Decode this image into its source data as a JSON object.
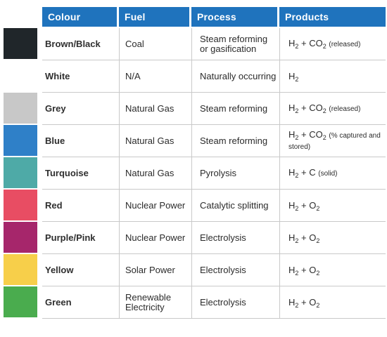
{
  "headers": {
    "colour": "Colour",
    "fuel": "Fuel",
    "process": "Process",
    "products": "Products"
  },
  "formula_parts": {
    "h": "H",
    "two": "2",
    "plus_co": " + CO",
    "plus_o": " + O",
    "plus_c": " + C "
  },
  "rows": [
    {
      "colour": "Brown/Black",
      "swatch": "#20262a",
      "fuel": "Coal",
      "process": "Steam reforming or gasification",
      "products_type": "co2",
      "note": "(released)"
    },
    {
      "colour": "White",
      "swatch": "#ffffff",
      "fuel": "N/A",
      "process": "Naturally occurring",
      "products_type": "h2",
      "note": ""
    },
    {
      "colour": "Grey",
      "swatch": "#c8c8c8",
      "fuel": "Natural Gas",
      "process": "Steam reforming",
      "products_type": "co2",
      "note": "(released)"
    },
    {
      "colour": "Blue",
      "swatch": "#2f80c8",
      "fuel": "Natural Gas",
      "process": "Steam reforming",
      "products_type": "co2",
      "note": "(% captured and stored)"
    },
    {
      "colour": "Turquoise",
      "swatch": "#4eaaa7",
      "fuel": "Natural Gas",
      "process": "Pyrolysis",
      "products_type": "c",
      "note": "(solid)"
    },
    {
      "colour": "Red",
      "swatch": "#e84d63",
      "fuel": "Nuclear Power",
      "process": "Catalytic splitting",
      "products_type": "o2",
      "note": ""
    },
    {
      "colour": "Purple/Pink",
      "swatch": "#a6266b",
      "fuel": "Nuclear Power",
      "process": "Electrolysis",
      "products_type": "o2",
      "note": ""
    },
    {
      "colour": "Yellow",
      "swatch": "#f7cf4a",
      "fuel": "Solar Power",
      "process": "Electrolysis",
      "products_type": "o2",
      "note": ""
    },
    {
      "colour": "Green",
      "swatch": "#4aac4e",
      "fuel": "Renewable Electricity",
      "process": "Electrolysis",
      "products_type": "o2",
      "note": ""
    }
  ],
  "colors": {
    "header_bg": "#1f73bd",
    "header_text": "#ffffff",
    "grid": "#c9c9c9"
  }
}
